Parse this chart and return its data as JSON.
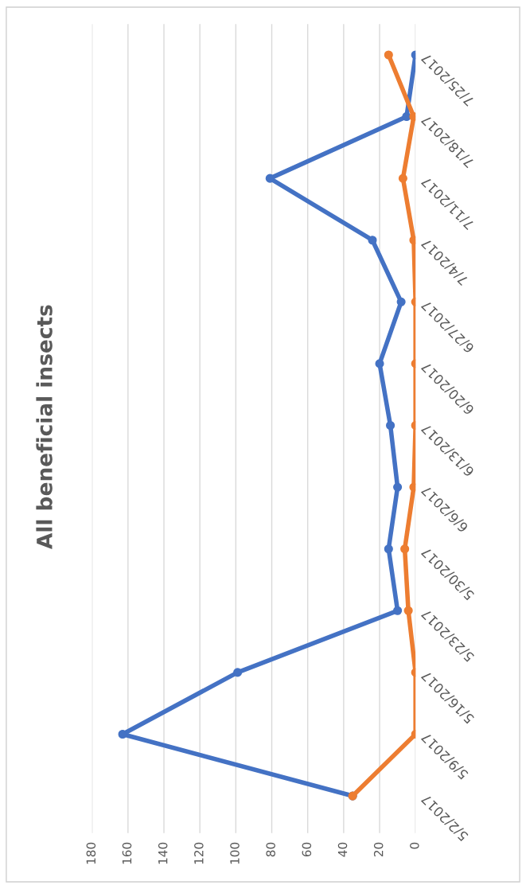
{
  "chart_data": {
    "type": "line",
    "title": "All beneficial insects",
    "orientation": "horizontal",
    "categories": [
      "7/25/2017",
      "7/18/2017",
      "7/11/2017",
      "7/4/2017",
      "6/27/2017",
      "6/20/2017",
      "6/13/2017",
      "6/6/2017",
      "5/30/2017",
      "5/23/2017",
      "5/16/2017",
      "5/9/2017",
      "5/2/2017"
    ],
    "series": [
      {
        "color": "#4472c4",
        "values": [
          0,
          5,
          81,
          24,
          8,
          20,
          14,
          10,
          15,
          10,
          99,
          163,
          35
        ]
      },
      {
        "color": "#ed7d31",
        "values": [
          15,
          1,
          7,
          1,
          0,
          0,
          0,
          1,
          6,
          4,
          0,
          0,
          35
        ]
      }
    ],
    "xlim": [
      180,
      0
    ],
    "xticks": [
      0,
      20,
      40,
      60,
      80,
      100,
      120,
      140,
      160,
      180
    ],
    "grid": "x",
    "marker": "circle",
    "line_style": "solid",
    "legend": false
  }
}
